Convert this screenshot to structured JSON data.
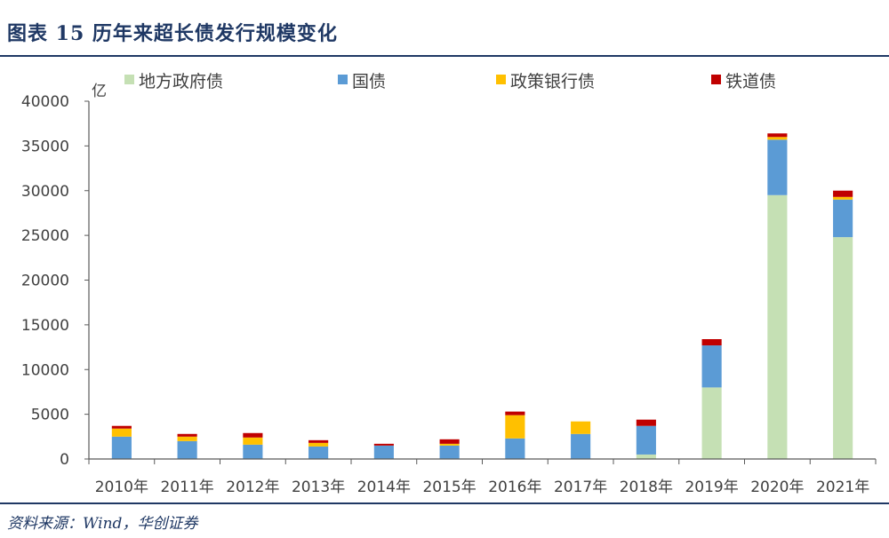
{
  "header": {
    "title": "图表 15  历年来超长债发行规模变化"
  },
  "footer": {
    "source": "资料来源：Wind，华创证券"
  },
  "colors": {
    "title": "#1f3864",
    "axis": "#595959",
    "text": "#404040"
  },
  "chart_data": {
    "type": "bar",
    "stacked": true,
    "title": "",
    "xlabel": "",
    "ylabel": "亿",
    "ylim": [
      0,
      40000
    ],
    "yticks": [
      "0",
      "5000",
      "10000",
      "15000",
      "20000",
      "25000",
      "30000",
      "35000",
      "40000"
    ],
    "grid": false,
    "legend_position": "top",
    "categories": [
      "2010年",
      "2011年",
      "2012年",
      "2013年",
      "2014年",
      "2015年",
      "2016年",
      "2017年",
      "2018年",
      "2019年",
      "2020年",
      "2021年"
    ],
    "series": [
      {
        "name": "地方政府债",
        "color": "#c5e0b4",
        "values": [
          0,
          0,
          0,
          0,
          0,
          0,
          0,
          0,
          500,
          8000,
          29500,
          24800
        ]
      },
      {
        "name": "国债",
        "color": "#5b9bd5",
        "values": [
          2500,
          2000,
          1600,
          1400,
          1500,
          1500,
          2300,
          2800,
          3200,
          4700,
          6200,
          4200
        ]
      },
      {
        "name": "政策银行债",
        "color": "#ffc000",
        "values": [
          900,
          500,
          800,
          400,
          0,
          200,
          2600,
          1400,
          0,
          0,
          300,
          300
        ]
      },
      {
        "name": "铁道债",
        "color": "#c00000",
        "values": [
          300,
          300,
          500,
          300,
          200,
          500,
          400,
          0,
          700,
          700,
          400,
          700
        ]
      }
    ]
  }
}
